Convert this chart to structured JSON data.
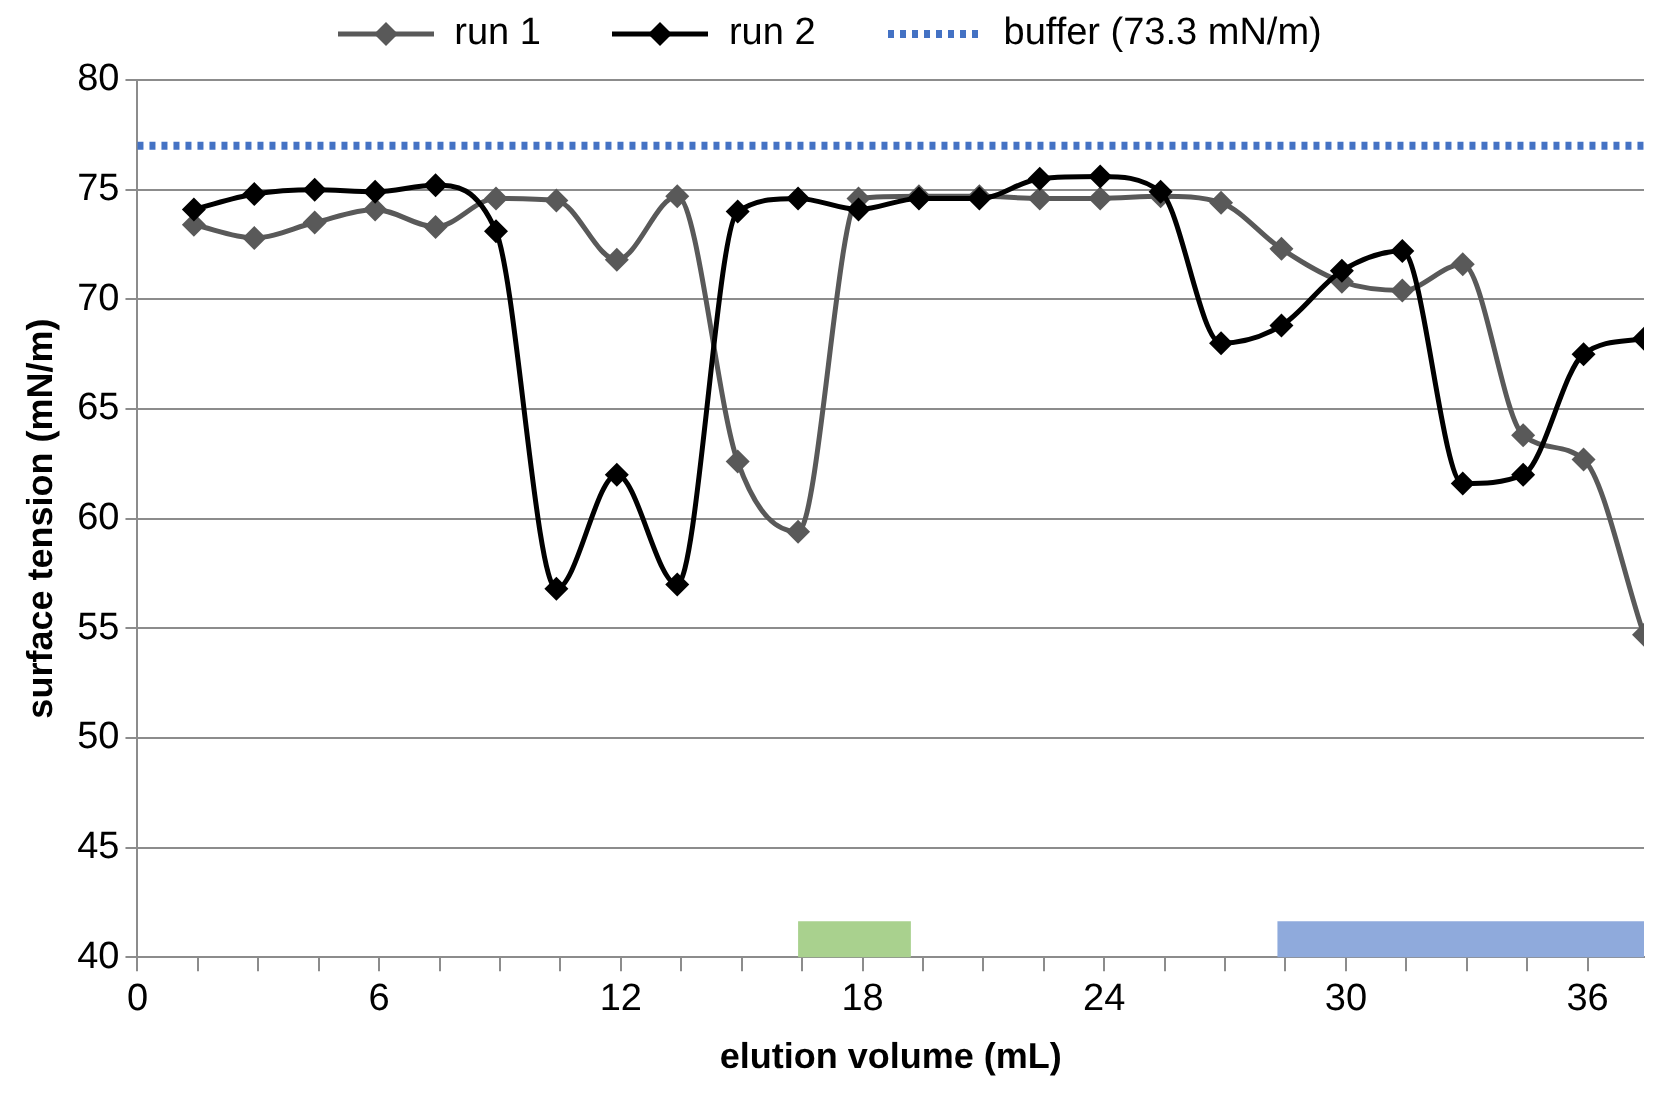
{
  "chart_data": {
    "type": "line",
    "xlabel": "elution volume (mL)",
    "ylabel": "surface tension (mN/m)",
    "series": [
      {
        "name": "run 1",
        "color": "#595959",
        "x": [
          1.4,
          2.9,
          4.4,
          5.9,
          7.4,
          8.9,
          10.4,
          11.9,
          13.4,
          14.9,
          16.4,
          17.9,
          19.4,
          20.9,
          22.4,
          23.9,
          25.4,
          26.9,
          28.4,
          29.9,
          31.4,
          32.9,
          34.4,
          35.9,
          37.4
        ],
        "values": [
          73.4,
          72.8,
          73.5,
          74.1,
          73.3,
          74.6,
          74.5,
          71.8,
          74.7,
          62.6,
          59.4,
          74.6,
          74.7,
          74.7,
          74.6,
          74.6,
          74.7,
          74.4,
          72.3,
          70.8,
          70.4,
          71.6,
          63.8,
          62.7,
          54.7
        ]
      },
      {
        "name": "run 2",
        "color": "#000000",
        "x": [
          1.4,
          2.9,
          4.4,
          5.9,
          7.4,
          8.9,
          10.4,
          11.9,
          13.4,
          14.9,
          16.4,
          17.9,
          19.4,
          20.9,
          22.4,
          23.9,
          25.4,
          26.9,
          28.4,
          29.9,
          31.4,
          32.9,
          34.4,
          35.9,
          37.4
        ],
        "values": [
          74.1,
          74.8,
          75.0,
          74.9,
          75.2,
          73.1,
          56.8,
          62.0,
          57.0,
          74.0,
          74.6,
          74.1,
          74.6,
          74.6,
          75.5,
          75.6,
          74.9,
          68.0,
          68.8,
          71.3,
          72.2,
          61.6,
          62.0,
          67.5,
          68.2
        ]
      }
    ],
    "ref_lines": [
      {
        "axis": "y",
        "value": 77.0,
        "label": "buffer (73.3 mN/m)",
        "color": "#4472c4",
        "line_style": "dotted"
      }
    ],
    "bands": [
      {
        "axis": "x",
        "from": 16.4,
        "to": 19.2,
        "color": "#a9d18e"
      },
      {
        "axis": "x",
        "from": 28.3,
        "to": 37.4,
        "color": "#8faadc"
      }
    ],
    "xlim": [
      0,
      37.4
    ],
    "xticks": [
      0,
      {
        "value": 1.5,
        "label": null
      },
      {
        "value": 3,
        "label": null
      },
      {
        "value": 4.5,
        "label": null
      },
      6,
      {
        "value": 7.5,
        "label": null
      },
      {
        "value": 9,
        "label": null
      },
      {
        "value": 10.5,
        "label": null
      },
      12,
      {
        "value": 13.5,
        "label": null
      },
      {
        "value": 15,
        "label": null
      },
      {
        "value": 16.5,
        "label": null
      },
      18,
      {
        "value": 19.5,
        "label": null
      },
      {
        "value": 21,
        "label": null
      },
      {
        "value": 22.5,
        "label": null
      },
      24,
      {
        "value": 25.5,
        "label": null
      },
      {
        "value": 27,
        "label": null
      },
      {
        "value": 28.5,
        "label": null
      },
      30,
      {
        "value": 31.5,
        "label": null
      },
      {
        "value": 33,
        "label": null
      },
      {
        "value": 34.5,
        "label": null
      },
      36
    ],
    "ylim": [
      40,
      80
    ],
    "yticks": [
      40,
      45,
      50,
      55,
      60,
      65,
      70,
      75,
      80
    ],
    "grid": "y",
    "legend": "top",
    "marker": "diamond",
    "line_style": "solid"
  }
}
